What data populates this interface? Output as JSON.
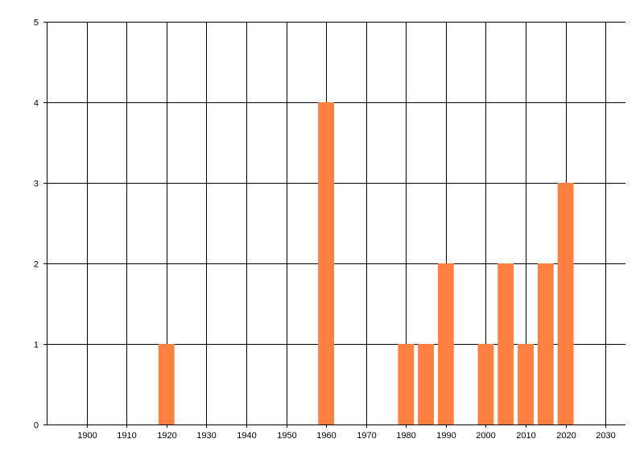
{
  "chart_data": {
    "type": "bar",
    "title": "",
    "xlabel": "",
    "ylabel": "",
    "x": [
      1920,
      1960,
      1980,
      1985,
      1990,
      2000,
      2005,
      2010,
      2015,
      2020
    ],
    "values": [
      1,
      4,
      1,
      1,
      2,
      1,
      2,
      1,
      2,
      3
    ],
    "xlim": [
      1890,
      2035
    ],
    "ylim": [
      0,
      5
    ],
    "xticks": [
      "1900",
      "1910",
      "1920",
      "1930",
      "1940",
      "1950",
      "1960",
      "1970",
      "1980",
      "1990",
      "2000",
      "2010",
      "2020",
      "2030"
    ],
    "yticks": [
      "0",
      "1",
      "2",
      "3",
      "4",
      "5"
    ],
    "grid": true,
    "bar_color": "#FF8040",
    "grid_color": "#000000"
  }
}
